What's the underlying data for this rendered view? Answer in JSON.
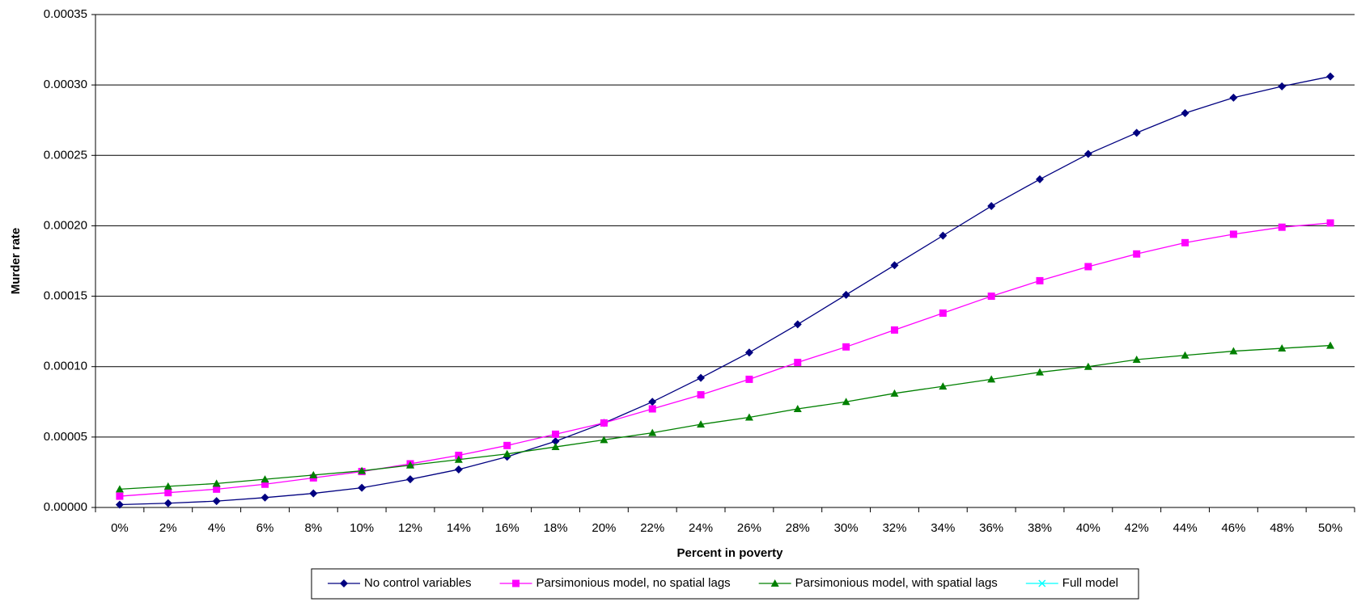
{
  "chart_data": {
    "type": "line",
    "x_label": "Percent in poverty",
    "y_label": "Murder rate",
    "categories": [
      "0%",
      "2%",
      "4%",
      "6%",
      "8%",
      "10%",
      "12%",
      "14%",
      "16%",
      "18%",
      "20%",
      "22%",
      "24%",
      "26%",
      "28%",
      "30%",
      "32%",
      "34%",
      "36%",
      "38%",
      "40%",
      "42%",
      "44%",
      "46%",
      "48%",
      "50%"
    ],
    "ylim": [
      0,
      0.00035
    ],
    "yticks": [
      {
        "value": 0,
        "label": "0.00000"
      },
      {
        "value": 5e-05,
        "label": "0.00005"
      },
      {
        "value": 0.0001,
        "label": "0.00010"
      },
      {
        "value": 0.00015,
        "label": "0.00015"
      },
      {
        "value": 0.0002,
        "label": "0.00020"
      },
      {
        "value": 0.00025,
        "label": "0.00025"
      },
      {
        "value": 0.0003,
        "label": "0.00030"
      },
      {
        "value": 0.00035,
        "label": "0.00035"
      }
    ],
    "grid": true,
    "legend": "bottom",
    "series": [
      {
        "name": "No control variables",
        "color": "#000080",
        "marker": "diamond",
        "values": [
          2e-06,
          3e-06,
          4.5e-06,
          7e-06,
          1e-05,
          1.4e-05,
          2e-05,
          2.7e-05,
          3.6e-05,
          4.7e-05,
          6e-05,
          7.5e-05,
          9.2e-05,
          0.00011,
          0.00013,
          0.000151,
          0.000172,
          0.000193,
          0.000214,
          0.000233,
          0.000251,
          0.000266,
          0.00028,
          0.000291,
          0.000299,
          0.000306
        ]
      },
      {
        "name": "Parsimonious model, no spatial lags",
        "color": "#ff00ff",
        "marker": "square",
        "values": [
          8e-06,
          1.05e-05,
          1.3e-05,
          1.65e-05,
          2.1e-05,
          2.55e-05,
          3.1e-05,
          3.7e-05,
          4.4e-05,
          5.2e-05,
          6e-05,
          7e-05,
          8e-05,
          9.1e-05,
          0.000103,
          0.000114,
          0.000126,
          0.000138,
          0.00015,
          0.000161,
          0.000171,
          0.00018,
          0.000188,
          0.000194,
          0.000199,
          0.000202
        ]
      },
      {
        "name": "Parsimonious model, with spatial lags",
        "color": "#008000",
        "marker": "triangle",
        "values": [
          1.3e-05,
          1.5e-05,
          1.7e-05,
          2e-05,
          2.3e-05,
          2.6e-05,
          3e-05,
          3.4e-05,
          3.8e-05,
          4.3e-05,
          4.8e-05,
          5.3e-05,
          5.9e-05,
          6.4e-05,
          7e-05,
          7.5e-05,
          8.1e-05,
          8.6e-05,
          9.1e-05,
          9.6e-05,
          0.0001,
          0.000105,
          0.000108,
          0.000111,
          0.000113,
          0.000115
        ]
      },
      {
        "name": "Full model",
        "color": "#00ffff",
        "marker": "x",
        "values": [
          null,
          null,
          null,
          null,
          null,
          null,
          null,
          null,
          null,
          null,
          null,
          null,
          null,
          null,
          null,
          null,
          null,
          null,
          null,
          null,
          null,
          null,
          null,
          null,
          null,
          null
        ]
      }
    ]
  }
}
